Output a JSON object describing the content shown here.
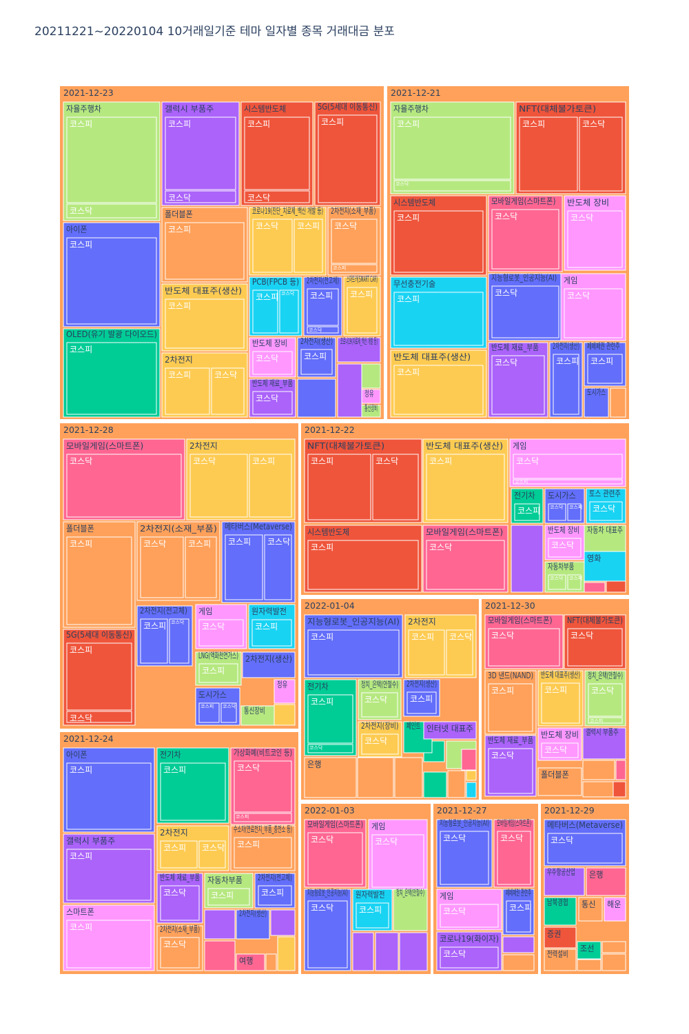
{
  "title": "20211221~20220104 10거래일기준 테마 일자별 종목 거래대금 분포",
  "chart_data": {
    "type": "treemap",
    "title": "20211221~20220104 10거래일기준 테마 일자별 종목 거래대금 분포",
    "levels": [
      "date",
      "theme",
      "market",
      "stock"
    ],
    "colors": {
      "date": "#FFA15A",
      "orange": "#FFA15A",
      "red": "#EF553B",
      "green": "#B6E880",
      "purple": "#AB63FA",
      "blue": "#636EFA",
      "teal": "#00CC96",
      "cyan": "#19D3F3",
      "yellow": "#FECB52",
      "pink": "#FF6692",
      "magenta": "#FF97FF"
    },
    "dates": [
      {
        "date": "2021-12-23",
        "themes": [
          {
            "name": "자율주행차",
            "color": "green",
            "markets": [
              "코스피",
              "코스닥"
            ]
          },
          {
            "name": "갤럭시 부품주",
            "color": "purple",
            "markets": [
              "코스피",
              "코스닥"
            ]
          },
          {
            "name": "시스템반도체",
            "color": "red",
            "markets": [
              "코스피",
              "코스닥"
            ]
          },
          {
            "name": "5G(5세대 이동통신)",
            "color": "red",
            "markets": [
              "코스피"
            ]
          },
          {
            "name": "아이폰",
            "color": "blue",
            "markets": [
              "코스피"
            ]
          },
          {
            "name": "폴더블폰",
            "color": "orange",
            "markets": [
              "코스피"
            ]
          },
          {
            "name": "코로나19(진단_치료제_백신 개발 등)",
            "color": "yellow",
            "markets": [
              "코스닥",
              "코스피"
            ]
          },
          {
            "name": "2차전지(소재_부품)",
            "color": "orange",
            "markets": [
              "코스닥",
              "코스피"
            ]
          },
          {
            "name": "OLED(유기 발광 다이오드)",
            "color": "teal",
            "markets": [
              "코스피"
            ]
          },
          {
            "name": "반도체 대표주(생산)",
            "color": "yellow",
            "markets": [
              "코스피"
            ]
          },
          {
            "name": "PCB(FPCB 등)",
            "color": "cyan",
            "markets": [
              "코스피",
              "코스닥"
            ]
          },
          {
            "name": "2차전지(전고체)",
            "color": "blue",
            "markets": [
              "코스피",
              "코스닥"
            ]
          },
          {
            "name": "스마트카(SMART CAR)",
            "color": "yellow",
            "markets": [
              "코스피"
            ]
          },
          {
            "name": "2차전지",
            "color": "yellow",
            "markets": [
              "코스피",
              "코스닥"
            ]
          },
          {
            "name": "반도체 장비",
            "color": "magenta",
            "markets": [
              "코스닥"
            ]
          },
          {
            "name": "2차전지(생산)",
            "color": "blue",
            "markets": [
              "코스피"
            ]
          },
          {
            "name": "코로나19(치료제_백신 개발 등)",
            "color": "purple",
            "markets": []
          },
          {
            "name": "반도체 재료_부품",
            "color": "purple",
            "markets": [
              "코스닥"
            ]
          },
          {
            "name": "정유",
            "color": "magenta",
            "markets": []
          },
          {
            "name": "통신장비",
            "color": "green",
            "markets": []
          }
        ]
      },
      {
        "date": "2021-12-21",
        "themes": [
          {
            "name": "자율주행차",
            "color": "green",
            "markets": [
              "코스피",
              "코스닥"
            ]
          },
          {
            "name": "NFT(대체불가토큰)",
            "color": "red",
            "markets": [
              "코스피",
              "코스닥"
            ]
          },
          {
            "name": "시스템반도체",
            "color": "red",
            "markets": [
              "코스피"
            ]
          },
          {
            "name": "모바일게임(스마트폰)",
            "color": "pink",
            "markets": [
              "코스닥"
            ]
          },
          {
            "name": "반도체 장비",
            "color": "magenta",
            "markets": [
              "코스닥"
            ]
          },
          {
            "name": "무선충전기술",
            "color": "cyan",
            "markets": [
              "코스피"
            ]
          },
          {
            "name": "지능형로봇_인공지능(AI)",
            "color": "blue",
            "markets": [
              "코스닥"
            ]
          },
          {
            "name": "게임",
            "color": "magenta",
            "markets": [
              "코스닥"
            ]
          },
          {
            "name": "반도체 대표주(생산)",
            "color": "yellow",
            "markets": [
              "코스피"
            ]
          },
          {
            "name": "반도체 재료_부품",
            "color": "purple",
            "markets": [
              "코스닥"
            ]
          },
          {
            "name": "2차전지(생산)",
            "color": "blue",
            "markets": [
              "코스피"
            ]
          },
          {
            "name": "페페패권 관련주",
            "color": "blue",
            "markets": [
              "코스피"
            ]
          },
          {
            "name": "도시가스",
            "color": "blue",
            "markets": []
          }
        ]
      },
      {
        "date": "2021-12-28",
        "themes": [
          {
            "name": "모바일게임(스마트폰)",
            "color": "pink",
            "markets": [
              "코스닥"
            ]
          },
          {
            "name": "2차전지",
            "color": "yellow",
            "markets": [
              "코스닥",
              "코스피"
            ]
          },
          {
            "name": "폴더블폰",
            "color": "orange",
            "markets": [
              "코스피"
            ]
          },
          {
            "name": "2차전지(소재_부품)",
            "color": "orange",
            "markets": [
              "코스닥",
              "코스피"
            ]
          },
          {
            "name": "메타버스(Metaverse)",
            "color": "blue",
            "markets": [
              "코스피",
              "코스닥"
            ]
          },
          {
            "name": "5G(5세대 이동통신)",
            "color": "red",
            "markets": [
              "코스피",
              "코스닥"
            ]
          },
          {
            "name": "2차전지(전고체)",
            "color": "blue",
            "markets": [
              "코스피",
              "코스닥"
            ]
          },
          {
            "name": "게임",
            "color": "magenta",
            "markets": [
              "코스닥"
            ]
          },
          {
            "name": "원자력발전",
            "color": "cyan",
            "markets": [
              "코스피"
            ]
          },
          {
            "name": "LNG(액화천연가스)",
            "color": "green",
            "markets": [
              "코스피"
            ]
          },
          {
            "name": "2차전지(생산)",
            "color": "blue",
            "markets": []
          },
          {
            "name": "도시가스",
            "color": "blue",
            "markets": [
              "코스피",
              "코스닥"
            ]
          },
          {
            "name": "정유",
            "color": "magenta",
            "markets": []
          },
          {
            "name": "통신장비",
            "color": "green",
            "markets": []
          }
        ]
      },
      {
        "date": "2021-12-22",
        "themes": [
          {
            "name": "NFT(대체불가토큰)",
            "color": "red",
            "markets": [
              "코스피",
              "코스닥"
            ]
          },
          {
            "name": "반도체 대표주(생산)",
            "color": "yellow",
            "markets": [
              "코스피"
            ]
          },
          {
            "name": "게임",
            "color": "magenta",
            "markets": [
              "코스닥",
              "코스피"
            ]
          },
          {
            "name": "전기차",
            "color": "teal",
            "markets": [
              "코스피"
            ]
          },
          {
            "name": "도시가스",
            "color": "blue",
            "markets": [
              "코스닥",
              "코스피"
            ]
          },
          {
            "name": "토스 관련주",
            "color": "cyan",
            "markets": [
              "코스닥"
            ]
          },
          {
            "name": "시스템반도체",
            "color": "red",
            "markets": [
              "코스피"
            ]
          },
          {
            "name": "모바일게임(스마트폰)",
            "color": "pink",
            "markets": [
              "코스닥"
            ]
          },
          {
            "name": "반도체 장비",
            "color": "magenta",
            "markets": [
              "코스닥"
            ]
          },
          {
            "name": "자동차 대표주",
            "color": "green",
            "markets": []
          },
          {
            "name": "자동차부품",
            "color": "green",
            "markets": [
              "코스닥",
              "코스피"
            ]
          },
          {
            "name": "영화",
            "color": "cyan",
            "markets": []
          }
        ]
      },
      {
        "date": "2022-01-04",
        "themes": [
          {
            "name": "지능형로봇_인공지능(AI)",
            "color": "blue",
            "markets": [
              "코스피"
            ]
          },
          {
            "name": "2차전지",
            "color": "yellow",
            "markets": [
              "코스피",
              "코스닥"
            ]
          },
          {
            "name": "전기차",
            "color": "teal",
            "markets": [
              "코스피",
              "코스닥"
            ]
          },
          {
            "name": "정치_은택(안철수)",
            "color": "green",
            "markets": [
              "코스닥"
            ]
          },
          {
            "name": "2차전지(생산)",
            "color": "blue",
            "markets": [
              "코스피"
            ]
          },
          {
            "name": "2차전지(장비)",
            "color": "yellow",
            "markets": [
              "코스닥"
            ]
          },
          {
            "name": "페인트",
            "color": "teal",
            "markets": []
          },
          {
            "name": "인터넷 대표주",
            "color": "purple",
            "markets": [
              "코스피"
            ]
          },
          {
            "name": "은행",
            "color": "orange",
            "markets": []
          }
        ]
      },
      {
        "date": "2021-12-30",
        "themes": [
          {
            "name": "모바일게임(스마트폰)",
            "color": "pink",
            "markets": [
              "코스닥"
            ]
          },
          {
            "name": "NFT(대체불가토큰)",
            "color": "red",
            "markets": [
              "코스닥"
            ]
          },
          {
            "name": "3D 낸드(NAND)",
            "color": "orange",
            "markets": [
              "코스피"
            ]
          },
          {
            "name": "반도체 대표주(생산)",
            "color": "yellow",
            "markets": [
              "코스피"
            ]
          },
          {
            "name": "정치_은택(안철수)",
            "color": "green",
            "markets": [
              "코스닥",
              "코스피"
            ]
          },
          {
            "name": "반도체 재료_부품",
            "color": "purple",
            "markets": [
              "코스닥"
            ]
          },
          {
            "name": "반도체 장비",
            "color": "magenta",
            "markets": [
              "코스닥"
            ]
          },
          {
            "name": "갤럭시 부품주",
            "color": "purple",
            "markets": []
          },
          {
            "name": "폴더블폰",
            "color": "orange",
            "markets": []
          }
        ]
      },
      {
        "date": "2021-12-24",
        "themes": [
          {
            "name": "아이폰",
            "color": "blue",
            "markets": [
              "코스피"
            ]
          },
          {
            "name": "전기차",
            "color": "teal",
            "markets": [
              "코스피"
            ]
          },
          {
            "name": "가상화폐(비트코인 등)",
            "color": "pink",
            "markets": [
              "코스닥",
              "코스피"
            ]
          },
          {
            "name": "2차전지",
            "color": "yellow",
            "markets": [
              "코스피",
              "코스닥"
            ]
          },
          {
            "name": "수소차(연료전지_부품_충전소 등)",
            "color": "orange",
            "markets": [
              "코스피"
            ]
          },
          {
            "name": "갤럭시 부품주",
            "color": "purple",
            "markets": [
              "코스피"
            ]
          },
          {
            "name": "반도체 재료_부품",
            "color": "purple",
            "markets": [
              "코스닥"
            ]
          },
          {
            "name": "자동차부품",
            "color": "green",
            "markets": [
              "코스피"
            ]
          },
          {
            "name": "2차전지(전고체)",
            "color": "blue",
            "markets": [
              "코스피"
            ]
          },
          {
            "name": "스마트폰",
            "color": "magenta",
            "markets": [
              "코스피"
            ]
          },
          {
            "name": "2차전지(소재_부품)",
            "color": "orange",
            "markets": [
              "코스닥"
            ]
          },
          {
            "name": "2차전지(생산)",
            "color": "blue",
            "markets": []
          },
          {
            "name": "여행",
            "color": "pink",
            "markets": []
          }
        ]
      },
      {
        "date": "2022-01-03",
        "themes": [
          {
            "name": "모바일게임(스마트폰)",
            "color": "pink",
            "markets": [
              "코스닥"
            ]
          },
          {
            "name": "게임",
            "color": "magenta",
            "markets": [
              "코스닥"
            ]
          },
          {
            "name": "지능형로봇_인공지능(AI)",
            "color": "blue",
            "markets": [
              "코스닥"
            ]
          },
          {
            "name": "원자력발전",
            "color": "cyan",
            "markets": [
              "코스피"
            ]
          },
          {
            "name": "정치_은택(안철수)",
            "color": "green",
            "markets": []
          }
        ]
      },
      {
        "date": "2021-12-27",
        "themes": [
          {
            "name": "지능형로봇_인공지능(AI)",
            "color": "blue",
            "markets": [
              "코스닥"
            ]
          },
          {
            "name": "모바일게임(스마트폰)",
            "color": "pink",
            "markets": [
              "코스닥"
            ]
          },
          {
            "name": "게임",
            "color": "magenta",
            "markets": [
              "코스닥"
            ]
          },
          {
            "name": "페페패권 관련주",
            "color": "blue",
            "markets": [
              "코스피"
            ]
          },
          {
            "name": "코로나19(화이자)",
            "color": "purple",
            "markets": [
              "코스닥"
            ]
          }
        ]
      },
      {
        "date": "2021-12-29",
        "themes": [
          {
            "name": "메타버스(Metaverse)",
            "color": "blue",
            "markets": [
              "코스닥"
            ]
          },
          {
            "name": "우주항공산업",
            "color": "purple",
            "markets": []
          },
          {
            "name": "은행",
            "color": "pink",
            "markets": []
          },
          {
            "name": "남북경협",
            "color": "teal",
            "markets": []
          },
          {
            "name": "통신",
            "color": "orange",
            "markets": []
          },
          {
            "name": "해운",
            "color": "magenta",
            "markets": []
          },
          {
            "name": "증권",
            "color": "red",
            "markets": []
          },
          {
            "name": "조선",
            "color": "teal",
            "markets": []
          },
          {
            "name": "전력설비",
            "color": "orange",
            "markets": []
          }
        ]
      }
    ]
  }
}
